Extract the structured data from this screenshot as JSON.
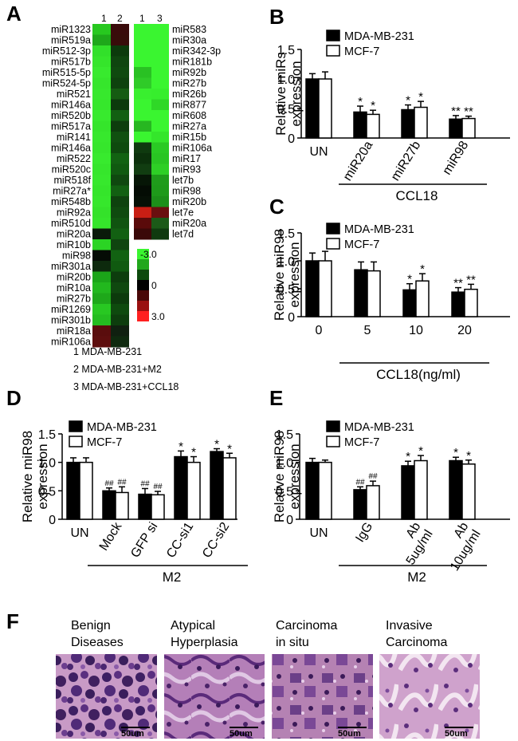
{
  "panel_labels": {
    "A": "A",
    "B": "B",
    "C": "C",
    "D": "D",
    "E": "E",
    "F": "F"
  },
  "heatmap": {
    "left_column_labels": [
      "1",
      "2"
    ],
    "right_column_labels": [
      "1",
      "3"
    ],
    "left_rows": [
      "miR1323",
      "miR519a",
      "miR512-3p",
      "miR517b",
      "miR515-5p",
      "miR524-5p",
      "miR521",
      "miR146a",
      "miR520b",
      "miR517a",
      "miR141",
      "miR146a",
      "miR522",
      "miR520c",
      "miR518f",
      "miR27a*",
      "miR548b",
      "miR92a",
      "miR510d",
      "miR20a",
      "miR10b",
      "miR98",
      "miR301a",
      "miR20b",
      "miR10a",
      "miR27b",
      "miR1269",
      "miR301b",
      "miR18a",
      "miR106a"
    ],
    "left_colors": [
      [
        "#27c81f",
        "#3a0b0b"
      ],
      [
        "#1ea81a",
        "#380d0a"
      ],
      [
        "#32e02a",
        "#0c3a0c"
      ],
      [
        "#35e52b",
        "#0f450f"
      ],
      [
        "#38ea2e",
        "#0f4a0f"
      ],
      [
        "#36e62c",
        "#0e420e"
      ],
      [
        "#37e82d",
        "#155c12"
      ],
      [
        "#36e72c",
        "#0c3a0c"
      ],
      [
        "#38ea2e",
        "#126012"
      ],
      [
        "#35e52b",
        "#0d3d0d"
      ],
      [
        "#37e82d",
        "#105010"
      ],
      [
        "#36e62c",
        "#0e4a0e"
      ],
      [
        "#38ea2e",
        "#126212"
      ],
      [
        "#36e62c",
        "#105a10"
      ],
      [
        "#37e82d",
        "#0f480f"
      ],
      [
        "#35e52b",
        "#126012"
      ],
      [
        "#36e72c",
        "#0e420e"
      ],
      [
        "#34e22a",
        "#0f4a0f"
      ],
      [
        "#35e52b",
        "#105410"
      ],
      [
        "#0a1a0a",
        "#126012"
      ],
      [
        "#2bd424",
        "#0f450f"
      ],
      [
        "#050c05",
        "#126212"
      ],
      [
        "#0d2a0d",
        "#105a10"
      ],
      [
        "#1ba519",
        "#0d3d0d"
      ],
      [
        "#22b81e",
        "#0f480f"
      ],
      [
        "#1ea81a",
        "#0c3a0c"
      ],
      [
        "#28c822",
        "#0e4a0e"
      ],
      [
        "#24bd20",
        "#0d3d0d"
      ],
      [
        "#5a0d0d",
        "#102010"
      ],
      [
        "#5e0e0e",
        "#0f2a0f"
      ]
    ],
    "right_rows": [
      "miR583",
      "miR30a",
      "miR342-3p",
      "miR181b",
      "miR92b",
      "miR27b",
      "miR26b",
      "miR877",
      "miR608",
      "miR27a",
      "miR15b",
      "miR106a",
      "miR17",
      "miR93",
      "let7b",
      "miR98",
      "miR20b",
      "let7e",
      "miR20a",
      "let7d"
    ],
    "right_colors": [
      [
        "#3af530",
        "#3af530"
      ],
      [
        "#3af530",
        "#3af530"
      ],
      [
        "#3af530",
        "#3af530"
      ],
      [
        "#3af530",
        "#3af530"
      ],
      [
        "#29c123",
        "#3af530"
      ],
      [
        "#2fcb28",
        "#3af530"
      ],
      [
        "#39ef2f",
        "#37ee2d"
      ],
      [
        "#3af530",
        "#2fd827"
      ],
      [
        "#3af530",
        "#3af530"
      ],
      [
        "#27b721",
        "#3af530"
      ],
      [
        "#3af530",
        "#34e62b"
      ],
      [
        "#0f3a0f",
        "#2aca24"
      ],
      [
        "#0b300b",
        "#29c523"
      ],
      [
        "#113d11",
        "#2ecf26"
      ],
      [
        "#061606",
        "#1f9c1b"
      ],
      [
        "#040c04",
        "#1e9a1a"
      ],
      [
        "#061006",
        "#1c8f19"
      ],
      [
        "#c81e14",
        "#6a0f0f"
      ],
      [
        "#5a0a0a",
        "#1c5a18"
      ],
      [
        "#3a0808",
        "#0f3a0f"
      ]
    ],
    "color_scale": {
      "labels": [
        "-3.0",
        "0",
        "3.0"
      ],
      "colors": [
        "#3af530",
        "#21a71c",
        "#0d4a0d",
        "#000000",
        "#4a0808",
        "#9a1010",
        "#ff2020"
      ]
    },
    "legend_lines": [
      "1 MDA-MB-231",
      "2 MDA-MB-231+M2",
      "3 MDA-MB-231+CCL18"
    ]
  },
  "chart_data": [
    {
      "panel": "B",
      "type": "bar",
      "ylabel": "Relative miRs\nexpression",
      "ylim": [
        0,
        1.5
      ],
      "yticks": [
        "0",
        "0.5",
        "1.0",
        "1.5"
      ],
      "categories": [
        "UN",
        "miR20a",
        "miR27b",
        "miR98"
      ],
      "category_rotated": [
        false,
        true,
        true,
        true
      ],
      "group_label": "CCL18",
      "series": [
        {
          "name": "MDA-MB-231",
          "values": [
            1.0,
            0.44,
            0.48,
            0.32
          ],
          "errors": [
            0.09,
            0.1,
            0.08,
            0.06
          ],
          "marks": [
            "",
            "*",
            "*",
            "**"
          ]
        },
        {
          "name": "MCF-7",
          "values": [
            1.0,
            0.4,
            0.52,
            0.33
          ],
          "errors": [
            0.12,
            0.07,
            0.1,
            0.04
          ],
          "marks": [
            "",
            "*",
            "*",
            "**"
          ]
        }
      ]
    },
    {
      "panel": "C",
      "type": "bar",
      "ylabel": "Relative miR98\nexpression",
      "ylim": [
        0,
        1.5
      ],
      "yticks": [
        "0",
        "0.5",
        "1.0",
        "1.5"
      ],
      "categories": [
        "0",
        "5",
        "10",
        "20"
      ],
      "category_rotated": [
        false,
        false,
        false,
        false
      ],
      "group_label": "CCL18(ng/ml)",
      "series": [
        {
          "name": "MDA-MB-231",
          "values": [
            1.0,
            0.84,
            0.48,
            0.44
          ],
          "errors": [
            0.14,
            0.14,
            0.11,
            0.08
          ],
          "marks": [
            "",
            "",
            "*",
            "**"
          ]
        },
        {
          "name": "MCF-7",
          "values": [
            1.0,
            0.82,
            0.64,
            0.49
          ],
          "errors": [
            0.17,
            0.16,
            0.13,
            0.09
          ],
          "marks": [
            "",
            "",
            "*",
            "**"
          ]
        }
      ]
    },
    {
      "panel": "D",
      "type": "bar",
      "ylabel": "Relative miR98\nexpression",
      "ylim": [
        0,
        1.5
      ],
      "yticks": [
        "0",
        "0.5",
        "1.0",
        "1.5"
      ],
      "categories": [
        "UN",
        "Mock",
        "GFP si",
        "CC-si1",
        "CC-si2"
      ],
      "category_rotated": [
        false,
        true,
        true,
        true,
        true
      ],
      "group_label": "M2",
      "series": [
        {
          "name": "MDA-MB-231",
          "values": [
            1.0,
            0.5,
            0.44,
            1.1,
            1.19
          ],
          "errors": [
            0.08,
            0.05,
            0.1,
            0.1,
            0.05
          ],
          "marks": [
            "",
            "##",
            "##",
            "*",
            "*"
          ]
        },
        {
          "name": "MCF-7",
          "values": [
            1.0,
            0.47,
            0.43,
            1.0,
            1.08
          ],
          "errors": [
            0.08,
            0.1,
            0.06,
            0.1,
            0.08
          ],
          "marks": [
            "",
            "##",
            "##",
            "*",
            "*"
          ]
        }
      ]
    },
    {
      "panel": "E",
      "type": "bar",
      "ylabel": "Relative miR98\nexpression",
      "ylim": [
        0,
        1.5
      ],
      "yticks": [
        "0",
        "0.5",
        "1.0",
        "1.5"
      ],
      "categories": [
        "UN",
        "IgG",
        "Ab\n5ug/ml",
        "Ab\n10ug/ml"
      ],
      "category_rotated": [
        false,
        true,
        true,
        true
      ],
      "group_label": "M2",
      "series": [
        {
          "name": "MDA-MB-231",
          "values": [
            1.0,
            0.52,
            0.94,
            1.03
          ],
          "errors": [
            0.07,
            0.05,
            0.08,
            0.06
          ],
          "marks": [
            "",
            "##",
            "*",
            "*"
          ]
        },
        {
          "name": "MCF-7",
          "values": [
            1.0,
            0.59,
            1.03,
            0.97
          ],
          "errors": [
            0.04,
            0.08,
            0.09,
            0.07
          ],
          "marks": [
            "",
            "##",
            "*",
            "*"
          ]
        }
      ]
    }
  ],
  "histology": {
    "images": [
      {
        "title": "Benign\nDiseases",
        "scale_label": "50um"
      },
      {
        "title": "Atypical\nHyperplasia",
        "scale_label": "50um"
      },
      {
        "title": "Carcinoma\nin situ",
        "scale_label": "50um"
      },
      {
        "title": "Invasive\nCarcinoma",
        "scale_label": "50um"
      }
    ]
  }
}
